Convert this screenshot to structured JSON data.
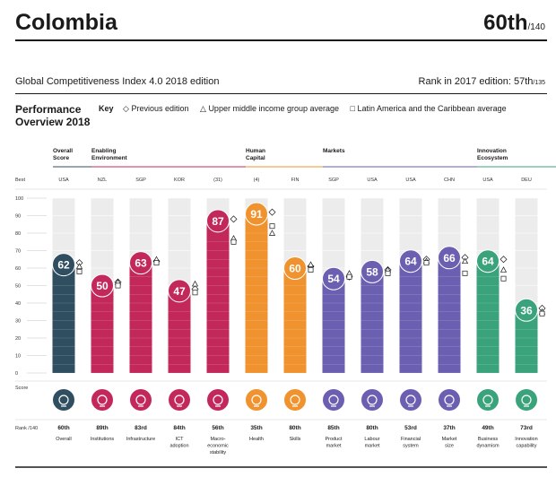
{
  "header": {
    "country": "Colombia",
    "rank": "60th",
    "rank_total": "/140",
    "edition": "Global Competitiveness Index 4.0 2018 edition",
    "prev_rank_label": "Rank in 2017 edition: 57th",
    "prev_rank_total": "/135"
  },
  "performance": {
    "title_line1": "Performance",
    "title_line2": "Overview 2018",
    "key_label": "Key",
    "key_prev": "◇ Previous edition",
    "key_upper": "△ Upper middle income group average",
    "key_latam": "□ Latin America and the Caribbean average"
  },
  "chart_data": {
    "type": "bar",
    "title": "Performance Overview 2018",
    "ylabel": "Score",
    "ylim": [
      0,
      100
    ],
    "yticks": [
      "100",
      "90",
      "80",
      "70",
      "60",
      "50",
      "40",
      "30",
      "20",
      "10",
      "0"
    ],
    "best_label": "Best",
    "score_label": "Score",
    "rank_label": "Rank /140",
    "groups": [
      {
        "name": "Overall Score",
        "line1": "Overall",
        "line2": "Score",
        "color": "#2f4e5f",
        "start": 0,
        "end": 0
      },
      {
        "name": "Enabling Environment",
        "line1": "Enabling",
        "line2": "Environment",
        "color": "#c3285a",
        "start": 1,
        "end": 4
      },
      {
        "name": "Human Capital",
        "line1": "Human",
        "line2": "Capital",
        "color": "#f0922d",
        "start": 5,
        "end": 6
      },
      {
        "name": "Markets",
        "line1": "Markets",
        "line2": "",
        "color": "#6a5fb0",
        "start": 7,
        "end": 10
      },
      {
        "name": "Innovation Ecosystem",
        "line1": "Innovation",
        "line2": "Ecosystem",
        "color": "#3aa37c",
        "start": 11,
        "end": 12
      }
    ],
    "categories": [
      "Overall",
      "Institutions",
      "Infrastructure",
      "ICT adoption",
      "Macro-economic stability",
      "Health",
      "Skills",
      "Product market",
      "Labour market",
      "Financial system",
      "Market size",
      "Business dynamism",
      "Innovation capability"
    ],
    "label_lines": [
      [
        "Overall"
      ],
      [
        "Institutions"
      ],
      [
        "Infrastructure"
      ],
      [
        "ICT",
        "adoption"
      ],
      [
        "Macro-",
        "economic",
        "stability"
      ],
      [
        "Health"
      ],
      [
        "Skills"
      ],
      [
        "Product",
        "market"
      ],
      [
        "Labour",
        "market"
      ],
      [
        "Financial",
        "system"
      ],
      [
        "Market",
        "size"
      ],
      [
        "Business",
        "dynamism"
      ],
      [
        "Innovation",
        "capability"
      ]
    ],
    "best": [
      "USA",
      "NZL",
      "SGP",
      "KOR",
      "(31)",
      "(4)",
      "FIN",
      "SGP",
      "USA",
      "USA",
      "CHN",
      "USA",
      "DEU"
    ],
    "values": [
      62,
      50,
      63,
      47,
      87,
      91,
      60,
      54,
      58,
      64,
      66,
      64,
      36
    ],
    "previous_edition": [
      63,
      52,
      64,
      48,
      88,
      92,
      61,
      55,
      59,
      65,
      66,
      65,
      37
    ],
    "upper_middle_income_avg": [
      61,
      52,
      65,
      51,
      77,
      80,
      62,
      57,
      59,
      64,
      64,
      59,
      35
    ],
    "latin_america_avg": [
      58,
      50,
      63,
      46,
      75,
      84,
      59,
      55,
      57,
      63,
      57,
      54,
      34
    ],
    "ranks": [
      "60th",
      "89th",
      "83rd",
      "84th",
      "56th",
      "35th",
      "80th",
      "85th",
      "80th",
      "53rd",
      "37th",
      "49th",
      "73rd"
    ],
    "colors": [
      "#2f4e5f",
      "#c3285a",
      "#c3285a",
      "#c3285a",
      "#c3285a",
      "#f0922d",
      "#f0922d",
      "#6a5fb0",
      "#6a5fb0",
      "#6a5fb0",
      "#6a5fb0",
      "#3aa37c",
      "#3aa37c"
    ],
    "light_colors": [
      "#5f7987",
      "#e07a98",
      "#e07a98",
      "#e07a98",
      "#e07a98",
      "#f6b57a",
      "#f6b57a",
      "#a59ed0",
      "#a59ed0",
      "#a59ed0",
      "#a59ed0",
      "#8dcfb3",
      "#8dcfb3"
    ],
    "icons": [
      "overall-score-icon",
      "institutions-icon",
      "infrastructure-icon",
      "ict-adoption-icon",
      "macroeconomic-stability-icon",
      "health-icon",
      "skills-icon",
      "product-market-icon",
      "labour-market-icon",
      "financial-system-icon",
      "market-size-icon",
      "business-dynamism-icon",
      "innovation-capability-icon"
    ]
  }
}
